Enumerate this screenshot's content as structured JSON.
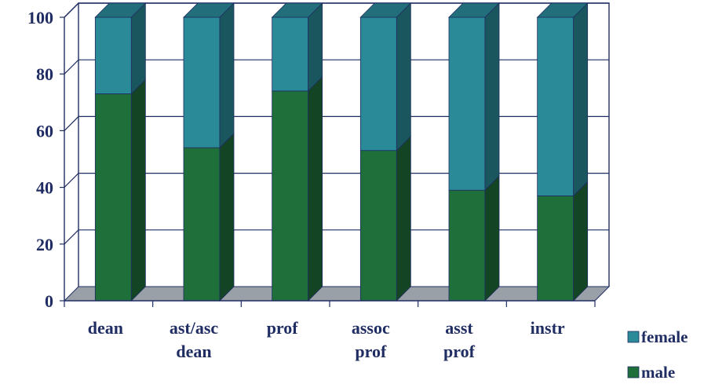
{
  "chart_data": {
    "type": "bar",
    "stacked": true,
    "categories": [
      [
        "dean"
      ],
      [
        "ast/asc",
        "dean"
      ],
      [
        "prof"
      ],
      [
        "assoc",
        "prof"
      ],
      [
        "asst",
        "prof"
      ],
      [
        "instr"
      ]
    ],
    "series": [
      {
        "name": "male",
        "values": [
          73,
          54,
          74,
          53,
          39,
          37
        ],
        "color": "#1e6f3a"
      },
      {
        "name": "female",
        "values": [
          27,
          46,
          26,
          47,
          61,
          63
        ],
        "color": "#2a8a98"
      }
    ],
    "yticks": [
      "0",
      "20",
      "40",
      "60",
      "80",
      "100"
    ],
    "ylim": [
      0,
      100
    ],
    "legend_position": "bottom-right",
    "legend_order": [
      "female",
      "male"
    ],
    "grid": true
  }
}
